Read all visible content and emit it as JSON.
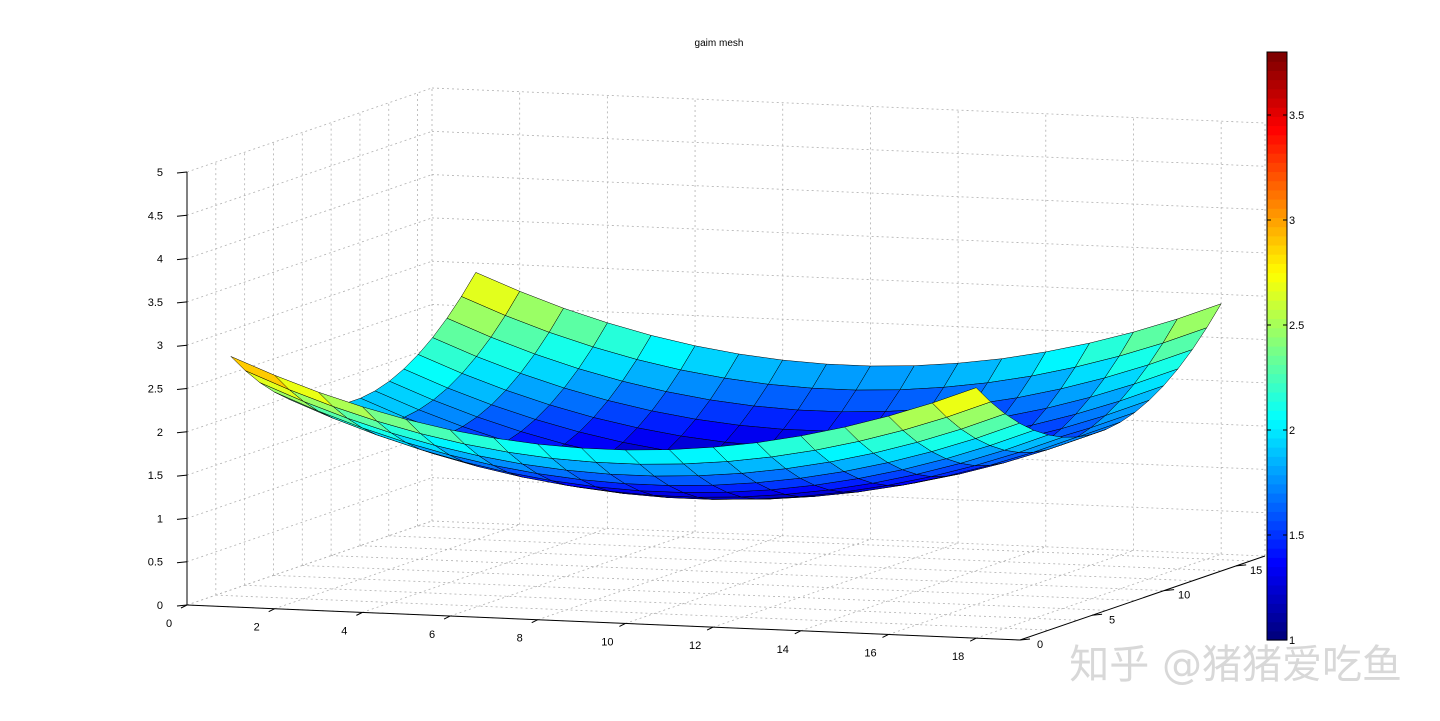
{
  "chart_data": {
    "type": "surface",
    "title": "gaim mesh",
    "function": "z = 1 + ((x - 9.5)/9)^2 + ((y - 8.5)/8.5)^2",
    "x": [
      1,
      2,
      3,
      4,
      5,
      6,
      7,
      8,
      9,
      10,
      11,
      12,
      13,
      14,
      15,
      16,
      17,
      18
    ],
    "y": [
      0,
      1,
      2,
      3,
      4,
      5,
      6,
      7,
      8,
      9,
      10,
      11,
      12,
      13,
      14,
      15,
      16,
      17
    ],
    "xlim": [
      0,
      19
    ],
    "ylim": [
      0,
      17
    ],
    "zlim": [
      0,
      5
    ],
    "xticks": [
      "0",
      "2",
      "4",
      "6",
      "8",
      "10",
      "12",
      "14",
      "16",
      "18"
    ],
    "yticks": [
      "0",
      "5",
      "10",
      "15"
    ],
    "zticks": [
      "0",
      "0.5",
      "1",
      "1.5",
      "2",
      "2.5",
      "3",
      "3.5",
      "4",
      "4.5",
      "5"
    ],
    "colormap": "jet",
    "clim": [
      1,
      3.8
    ],
    "colorbar_ticks": [
      "1",
      "1.5",
      "2",
      "2.5",
      "3",
      "3.5"
    ],
    "grid": true
  },
  "watermark": "知乎 @猪猪爱吃鱼"
}
